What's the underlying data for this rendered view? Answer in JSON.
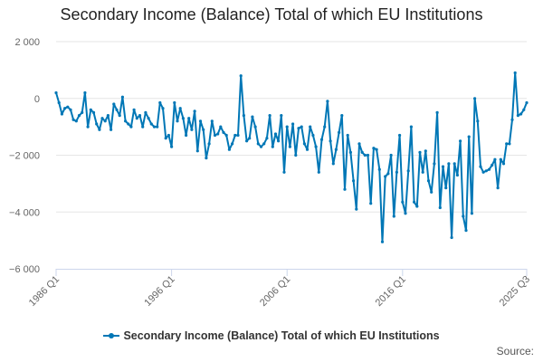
{
  "chart_data": {
    "type": "line",
    "title": "Secondary Income (Balance) Total of which EU Institutions",
    "xlabel": "",
    "ylabel": "",
    "x_tick_labels": [
      "1986 Q1",
      "1996 Q1",
      "2006 Q1",
      "2016 Q1",
      "2025 Q3"
    ],
    "y_tick_labels": [
      "2 000",
      "0",
      "−2 000",
      "−4 000",
      "−6 000"
    ],
    "y_ticks": [
      2000,
      0,
      -2000,
      -4000,
      -6000
    ],
    "ylim": [
      -6000,
      2000
    ],
    "x_range": [
      "1986 Q1",
      "2025 Q3"
    ],
    "grid": "horizontal",
    "legend_position": "bottom-center",
    "series": [
      {
        "name": "Secondary Income (Balance) Total of which EU Institutions",
        "color": "#0077b6",
        "values": [
          200,
          -150,
          -550,
          -350,
          -300,
          -400,
          -750,
          -800,
          -600,
          -500,
          200,
          -1000,
          -400,
          -500,
          -900,
          -1100,
          -700,
          -800,
          -600,
          -1100,
          -200,
          -400,
          -600,
          50,
          -800,
          -900,
          -1000,
          -400,
          -700,
          -600,
          -1000,
          -500,
          -700,
          -900,
          -1000,
          -1000,
          -150,
          -350,
          -1400,
          -1300,
          -1700,
          -150,
          -800,
          -350,
          -700,
          -1300,
          -700,
          -1100,
          -450,
          -1850,
          -800,
          -1100,
          -2100,
          -1600,
          -800,
          -1300,
          -1250,
          -1000,
          -1200,
          -1300,
          -1800,
          -1600,
          -1300,
          -1300,
          800,
          -600,
          -1500,
          -1400,
          -650,
          -1000,
          -1600,
          -1700,
          -1600,
          -1400,
          -600,
          -1700,
          -1250,
          -1500,
          -600,
          -2600,
          -1000,
          -1700,
          -900,
          -2000,
          -1050,
          -1000,
          -1600,
          -1800,
          -1000,
          -1300,
          -1700,
          -2600,
          -1450,
          -1000,
          -100,
          -1500,
          -2300,
          -1800,
          -1200,
          -600,
          -3200,
          -1300,
          -1900,
          -2900,
          -3900,
          -1600,
          -1900,
          -2000,
          -2000,
          -3700,
          -1750,
          -1800,
          -2500,
          -5050,
          -2750,
          -2650,
          -2000,
          -4150,
          -2600,
          -1300,
          -3650,
          -4050,
          -2550,
          -1000,
          -3650,
          -3800,
          -1900,
          -2600,
          -1850,
          -2900,
          -3300,
          -2300,
          -500,
          -3850,
          -2400,
          -3150,
          -2300,
          -4900,
          -2300,
          -2700,
          -1500,
          -4150,
          -4650,
          -1350,
          -4050,
          0,
          -800,
          -2400,
          -2600,
          -2550,
          -2500,
          -2350,
          -2150,
          -3150,
          -2150,
          -2300,
          -1600,
          -1600,
          -750,
          900,
          -600,
          -550,
          -400,
          -150
        ]
      }
    ]
  },
  "credits": {
    "label": "Source:"
  }
}
